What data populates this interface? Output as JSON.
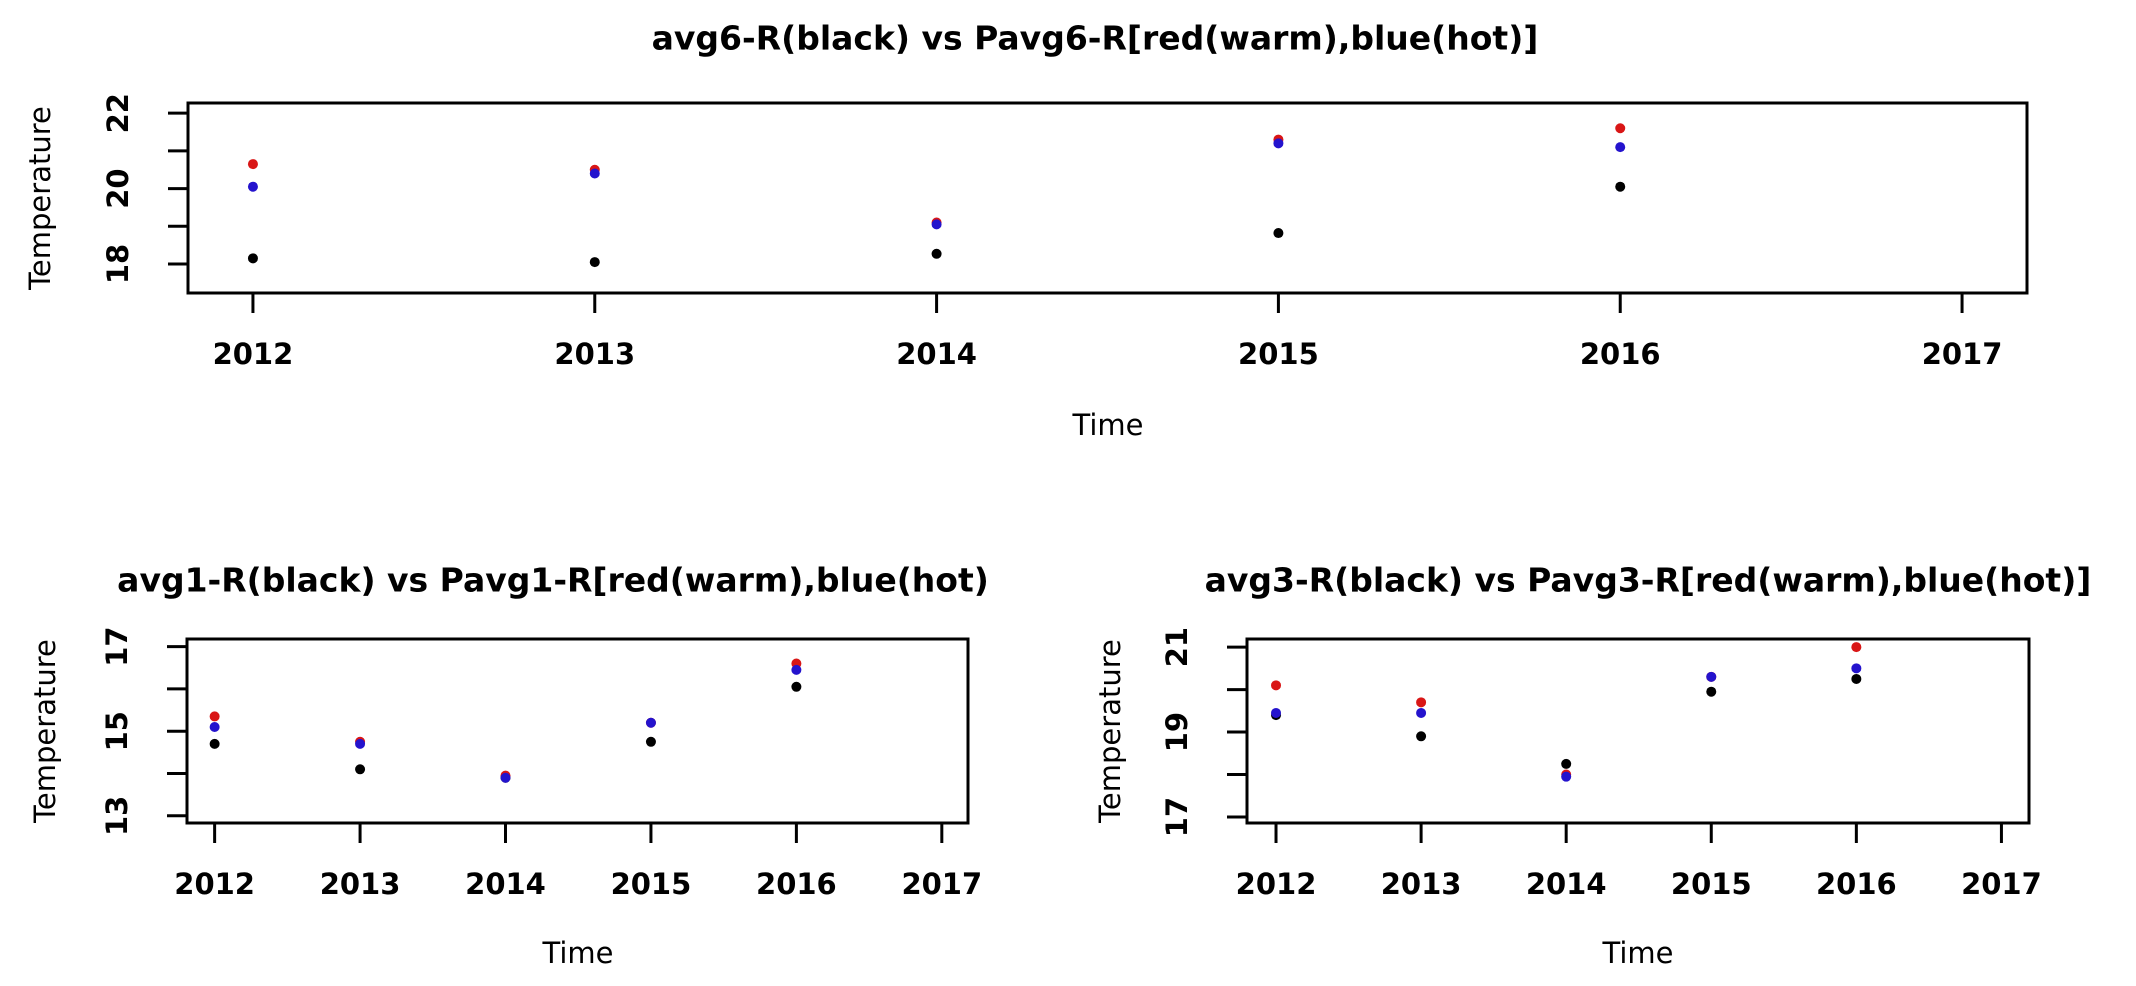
{
  "colors": {
    "black": "#000000",
    "red": "#d91616",
    "blue": "#2413cd"
  },
  "chart_data": [
    {
      "id": "avg6",
      "type": "scatter",
      "title": "avg6-R(black) vs Pavg6-R[red(warm),blue(hot)]",
      "xlabel": "Time",
      "ylabel": "Temperature",
      "x_ticks": [
        "2012",
        "2013",
        "2014",
        "2015",
        "2016",
        "2017"
      ],
      "y_ticks": [
        18,
        19,
        20,
        21,
        22
      ],
      "y_tick_labels": [
        "18",
        "20",
        "22"
      ],
      "xlim": [
        2011.81,
        2017.19
      ],
      "ylim": [
        17.23,
        22.27
      ],
      "grid": false,
      "legend": "encoded in title: black=avg6-R, red=warm, blue=hot",
      "series": [
        {
          "name": "avg6-R",
          "color": "black",
          "points": [
            [
              2012,
              18.15
            ],
            [
              2013,
              18.05
            ],
            [
              2014,
              18.27
            ],
            [
              2015,
              18.82
            ],
            [
              2016,
              20.05
            ]
          ]
        },
        {
          "name": "Pavg6-R warm",
          "color": "red",
          "points": [
            [
              2012,
              20.65
            ],
            [
              2013,
              20.5
            ],
            [
              2014,
              19.1
            ],
            [
              2015,
              21.3
            ],
            [
              2016,
              21.6
            ]
          ]
        },
        {
          "name": "Pavg6-R hot",
          "color": "blue",
          "points": [
            [
              2012,
              20.05
            ],
            [
              2013,
              20.4
            ],
            [
              2014,
              19.05
            ],
            [
              2015,
              21.2
            ],
            [
              2016,
              21.1
            ]
          ]
        }
      ]
    },
    {
      "id": "avg1",
      "type": "scatter",
      "title": "avg1-R(black) vs Pavg1-R[red(warm),blue(hot)",
      "xlabel": "Time",
      "ylabel": "Temperature",
      "x_ticks": [
        "2012",
        "2013",
        "2014",
        "2015",
        "2016",
        "2017"
      ],
      "y_ticks": [
        13,
        14,
        15,
        16,
        17
      ],
      "y_tick_labels": [
        "13",
        "15",
        "17"
      ],
      "xlim": [
        2011.81,
        2017.18
      ],
      "ylim": [
        12.83,
        17.18
      ],
      "grid": false,
      "legend": "encoded in title: black=avg1-R, red=warm, blue=hot",
      "series": [
        {
          "name": "avg1-R",
          "color": "black",
          "points": [
            [
              2012,
              14.7
            ],
            [
              2013,
              14.1
            ],
            [
              2014,
              13.9
            ],
            [
              2015,
              14.75
            ],
            [
              2016,
              16.05
            ]
          ]
        },
        {
          "name": "Pavg1-R warm",
          "color": "red",
          "points": [
            [
              2012,
              15.35
            ],
            [
              2013,
              14.75
            ],
            [
              2014,
              13.95
            ],
            [
              2015,
              15.2
            ],
            [
              2016,
              16.6
            ]
          ]
        },
        {
          "name": "Pavg1-R hot",
          "color": "blue",
          "points": [
            [
              2012,
              15.1
            ],
            [
              2013,
              14.7
            ],
            [
              2014,
              13.9
            ],
            [
              2015,
              15.2
            ],
            [
              2016,
              16.45
            ]
          ]
        }
      ]
    },
    {
      "id": "avg3",
      "type": "scatter",
      "title": "avg3-R(black) vs Pavg3-R[red(warm),blue(hot)]",
      "xlabel": "Time",
      "ylabel": "Temperature",
      "x_ticks": [
        "2012",
        "2013",
        "2014",
        "2015",
        "2016",
        "2017"
      ],
      "y_ticks": [
        17,
        18,
        19,
        20,
        21
      ],
      "y_tick_labels": [
        "17",
        "19",
        "21"
      ],
      "xlim": [
        2011.8,
        2017.19
      ],
      "ylim": [
        16.86,
        21.19
      ],
      "grid": false,
      "legend": "encoded in title: black=avg3-R, red=warm, blue=hot",
      "series": [
        {
          "name": "avg3-R",
          "color": "black",
          "points": [
            [
              2012,
              19.4
            ],
            [
              2013,
              18.9
            ],
            [
              2014,
              18.25
            ],
            [
              2015,
              19.95
            ],
            [
              2016,
              20.25
            ]
          ]
        },
        {
          "name": "Pavg3-R warm",
          "color": "red",
          "points": [
            [
              2012,
              20.1
            ],
            [
              2013,
              19.7
            ],
            [
              2014,
              18.0
            ],
            [
              2015,
              20.3
            ],
            [
              2016,
              21.0
            ]
          ]
        },
        {
          "name": "Pavg3-R hot",
          "color": "blue",
          "points": [
            [
              2012,
              19.45
            ],
            [
              2013,
              19.45
            ],
            [
              2014,
              17.95
            ],
            [
              2015,
              20.3
            ],
            [
              2016,
              20.5
            ]
          ]
        }
      ]
    }
  ]
}
